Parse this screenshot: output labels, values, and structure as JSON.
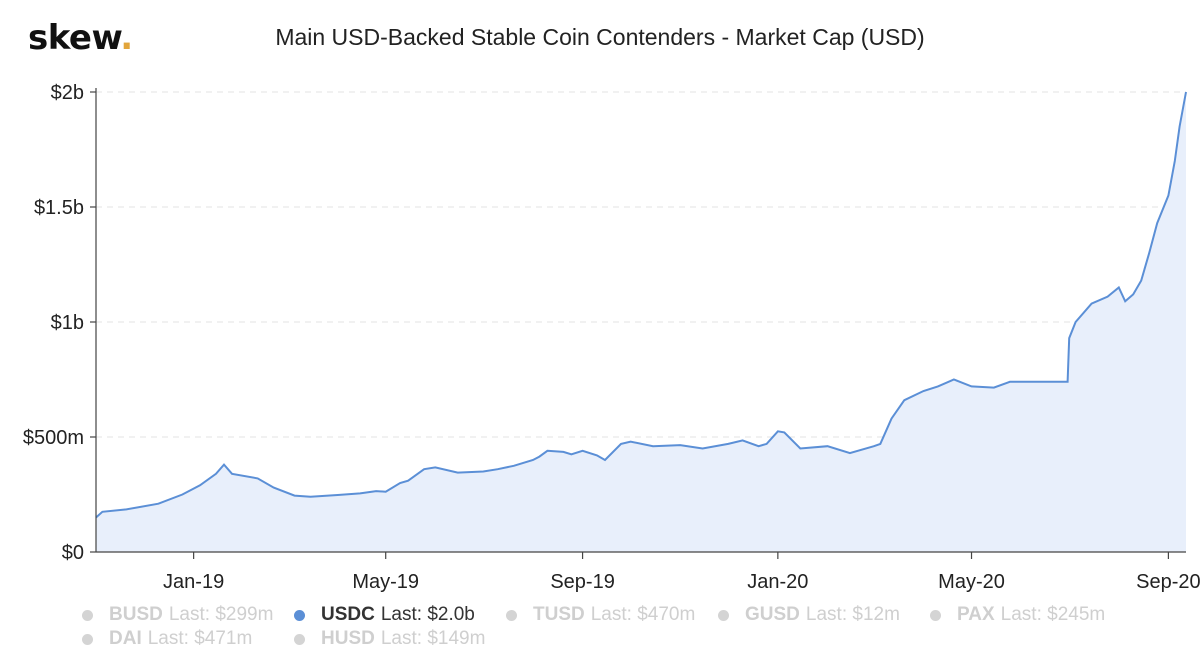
{
  "logo": {
    "text": "skew",
    "dot": "."
  },
  "colors": {
    "line": "#5b8fd6",
    "fill": "#e8effb",
    "grid": "#e3e3e3",
    "axis": "#444444",
    "inactive": "#d4d4d4",
    "active": "#5b8fd6"
  },
  "chart_data": {
    "type": "area",
    "title": "Main USD-Backed Stable Coin Contenders - Market Cap (USD)",
    "xlabel": "",
    "ylabel": "",
    "ylim": [
      0,
      2000000000
    ],
    "grid": true,
    "yticks": [
      {
        "value": 0,
        "label": "$0"
      },
      {
        "value": 500000000,
        "label": "$500m"
      },
      {
        "value": 1000000000,
        "label": "$1b"
      },
      {
        "value": 1500000000,
        "label": "$1.5b"
      },
      {
        "value": 2000000000,
        "label": "$2b"
      }
    ],
    "xlim": [
      "2018-11-01",
      "2020-09-12"
    ],
    "xticks": [
      {
        "value": "2019-01-01",
        "label": "Jan-19"
      },
      {
        "value": "2019-05-01",
        "label": "May-19"
      },
      {
        "value": "2019-09-01",
        "label": "Sep-19"
      },
      {
        "value": "2020-01-01",
        "label": "Jan-20"
      },
      {
        "value": "2020-05-01",
        "label": "May-20"
      },
      {
        "value": "2020-09-01",
        "label": "Sep-20"
      }
    ],
    "series": [
      {
        "name": "USDC",
        "x": [
          "2018-11-01",
          "2018-11-05",
          "2018-11-20",
          "2018-12-10",
          "2018-12-25",
          "2019-01-05",
          "2019-01-15",
          "2019-01-20",
          "2019-01-25",
          "2019-02-10",
          "2019-02-20",
          "2019-03-05",
          "2019-03-15",
          "2019-04-01",
          "2019-04-15",
          "2019-04-25",
          "2019-05-01",
          "2019-05-10",
          "2019-05-15",
          "2019-05-25",
          "2019-06-01",
          "2019-06-15",
          "2019-07-01",
          "2019-07-10",
          "2019-07-20",
          "2019-08-01",
          "2019-08-05",
          "2019-08-10",
          "2019-08-20",
          "2019-08-25",
          "2019-09-01",
          "2019-09-10",
          "2019-09-15",
          "2019-09-25",
          "2019-10-01",
          "2019-10-15",
          "2019-11-01",
          "2019-11-15",
          "2019-12-01",
          "2019-12-10",
          "2019-12-20",
          "2019-12-25",
          "2020-01-01",
          "2020-01-05",
          "2020-01-15",
          "2020-02-01",
          "2020-02-15",
          "2020-03-01",
          "2020-03-05",
          "2020-03-12",
          "2020-03-20",
          "2020-04-01",
          "2020-04-10",
          "2020-04-20",
          "2020-05-01",
          "2020-05-15",
          "2020-05-25",
          "2020-06-01",
          "2020-06-15",
          "2020-06-30",
          "2020-07-01",
          "2020-07-05",
          "2020-07-15",
          "2020-07-25",
          "2020-08-01",
          "2020-08-05",
          "2020-08-10",
          "2020-08-15",
          "2020-08-20",
          "2020-08-25",
          "2020-09-01",
          "2020-09-05",
          "2020-09-08",
          "2020-09-12"
        ],
        "values": [
          150000000,
          175000000,
          185000000,
          210000000,
          250000000,
          290000000,
          340000000,
          380000000,
          340000000,
          320000000,
          280000000,
          245000000,
          240000000,
          248000000,
          255000000,
          265000000,
          262000000,
          300000000,
          310000000,
          360000000,
          368000000,
          345000000,
          350000000,
          360000000,
          375000000,
          400000000,
          415000000,
          440000000,
          435000000,
          425000000,
          440000000,
          420000000,
          400000000,
          470000000,
          480000000,
          460000000,
          465000000,
          450000000,
          470000000,
          485000000,
          460000000,
          470000000,
          525000000,
          520000000,
          450000000,
          460000000,
          430000000,
          460000000,
          470000000,
          580000000,
          660000000,
          700000000,
          720000000,
          750000000,
          720000000,
          715000000,
          740000000,
          740000000,
          740000000,
          740000000,
          930000000,
          1000000000,
          1080000000,
          1110000000,
          1150000000,
          1090000000,
          1120000000,
          1180000000,
          1300000000,
          1430000000,
          1550000000,
          1700000000,
          1850000000,
          2000000000
        ]
      }
    ]
  },
  "legend": [
    {
      "name": "BUSD",
      "last": "Last: $299m",
      "active": false
    },
    {
      "name": "USDC",
      "last": "Last: $2.0b",
      "active": true
    },
    {
      "name": "TUSD",
      "last": "Last: $470m",
      "active": false
    },
    {
      "name": "GUSD",
      "last": "Last: $12m",
      "active": false
    },
    {
      "name": "PAX",
      "last": "Last: $245m",
      "active": false
    },
    {
      "name": "DAI",
      "last": "Last: $471m",
      "active": false
    },
    {
      "name": "HUSD",
      "last": "Last: $149m",
      "active": false
    }
  ]
}
